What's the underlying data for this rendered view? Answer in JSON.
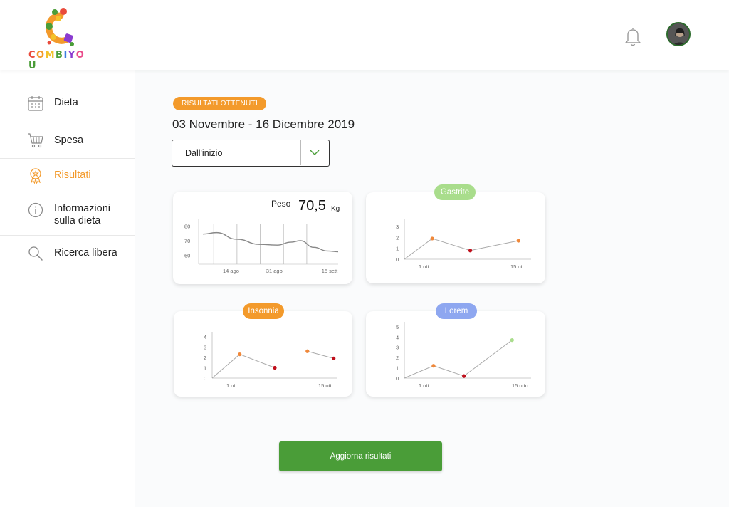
{
  "header": {
    "logo_text": "COMBIYOU",
    "logo_letter_colors": [
      "#e94b3c",
      "#f39a2b",
      "#f3c22b",
      "#4a9d38",
      "#3b7de0",
      "#8a3bd0",
      "#e94b8a",
      "#4a9d38"
    ],
    "bell_icon": "bell-icon",
    "avatar_icon": "user-avatar"
  },
  "sidebar": {
    "items": [
      {
        "label": "Dieta",
        "icon": "calendar-icon",
        "active": false
      },
      {
        "label": "Spesa",
        "icon": "cart-icon",
        "active": false
      },
      {
        "label": "Risultati",
        "icon": "award-icon",
        "active": true
      },
      {
        "label": "Informazioni sulla dieta",
        "icon": "info-icon",
        "active": false
      },
      {
        "label": "Ricerca libera",
        "icon": "search-icon",
        "active": false
      }
    ]
  },
  "main": {
    "badge": "RISULTATI OTTENUTI",
    "period": "03 Novembre - 16 Dicembre 2019",
    "select": {
      "value": "Dall'inizio"
    },
    "update_button": "Aggiorna risultati"
  },
  "colors": {
    "accent": "#f39a2b",
    "primary_button": "#4a9d38",
    "pill_gastrite": "#a9dd8c",
    "pill_insonnia": "#f39a2b",
    "pill_lorem": "#8ea7f0",
    "point_orange": "#f0883a",
    "point_red": "#c0101c",
    "point_green": "#a9dd8c"
  },
  "chart_data": [
    {
      "type": "line",
      "title": "Peso",
      "value_label": "70,5",
      "unit": "Kg",
      "x": [
        "14 ago",
        "31 ago",
        "15 sett"
      ],
      "yticks": [
        60,
        70,
        80
      ],
      "ylim": [
        55,
        85
      ],
      "series": [
        {
          "points": [
            [
              0,
              74.5
            ],
            [
              0.1,
              75.5
            ],
            [
              0.25,
              71
            ],
            [
              0.42,
              67.5
            ],
            [
              0.55,
              67
            ],
            [
              0.65,
              69
            ],
            [
              0.72,
              70
            ],
            [
              0.82,
              65.5
            ],
            [
              0.92,
              63
            ],
            [
              1.0,
              62.5
            ]
          ]
        }
      ],
      "vertical_markers": 6
    },
    {
      "type": "line",
      "title": "Gastrite",
      "x_labels": [
        "1 ott",
        "15 ott"
      ],
      "yticks": [
        0,
        1,
        2,
        3
      ],
      "ylim": [
        0,
        3.4
      ],
      "points": [
        {
          "x": 0,
          "y": 0,
          "color": "none"
        },
        {
          "x": 0.22,
          "y": 1.9,
          "color": "#f0883a"
        },
        {
          "x": 0.52,
          "y": 0.8,
          "color": "#c0101c"
        },
        {
          "x": 0.9,
          "y": 1.7,
          "color": "#f0883a"
        }
      ]
    },
    {
      "type": "line",
      "title": "Insonnia",
      "x_labels": [
        "1 ott",
        "15 ott"
      ],
      "yticks": [
        0,
        1,
        2,
        3,
        4
      ],
      "ylim": [
        0,
        4.2
      ],
      "segments": [
        [
          {
            "x": 0,
            "y": 0,
            "color": "none"
          },
          {
            "x": 0.22,
            "y": 2.3,
            "color": "#f0883a"
          },
          {
            "x": 0.5,
            "y": 1.0,
            "color": "#c0101c"
          }
        ],
        [
          {
            "x": 0.76,
            "y": 2.6,
            "color": "#f0883a"
          },
          {
            "x": 0.97,
            "y": 1.9,
            "color": "#c0101c"
          }
        ]
      ]
    },
    {
      "type": "line",
      "title": "Lorem",
      "x_labels": [
        "1 ott",
        "15 otto"
      ],
      "yticks": [
        0,
        1,
        2,
        3,
        4,
        5
      ],
      "ylim": [
        0,
        5.2
      ],
      "points": [
        {
          "x": 0,
          "y": 0,
          "color": "none"
        },
        {
          "x": 0.23,
          "y": 1.2,
          "color": "#f0883a"
        },
        {
          "x": 0.47,
          "y": 0.2,
          "color": "#c0101c"
        },
        {
          "x": 0.85,
          "y": 3.7,
          "color": "#a9dd8c"
        }
      ]
    }
  ]
}
